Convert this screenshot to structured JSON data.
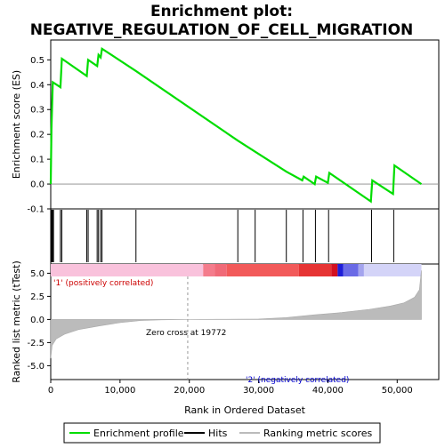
{
  "chart_data": {
    "type": "line",
    "title_line1": "Enrichment plot:",
    "title_line2": "NEGATIVE_REGULATION_OF_CELL_MIGRATION",
    "es_panel": {
      "ylabel": "Enrichment score (ES)",
      "ylim": [
        -0.1,
        0.58
      ],
      "yticks": [
        "-0.1",
        "0.0",
        "0.1",
        "0.2",
        "0.3",
        "0.4",
        "0.5"
      ],
      "series_name": "Enrichment profile",
      "color": "#00dd00",
      "points": [
        [
          0,
          0.0
        ],
        [
          100,
          0.22
        ],
        [
          300,
          0.41
        ],
        [
          1400,
          0.39
        ],
        [
          1600,
          0.505
        ],
        [
          5200,
          0.435
        ],
        [
          5400,
          0.5
        ],
        [
          6700,
          0.475
        ],
        [
          6900,
          0.52
        ],
        [
          7200,
          0.51
        ],
        [
          7400,
          0.545
        ],
        [
          12300,
          0.455
        ],
        [
          27000,
          0.175
        ],
        [
          29500,
          0.13
        ],
        [
          34000,
          0.05
        ],
        [
          36300,
          0.015
        ],
        [
          36500,
          0.03
        ],
        [
          38100,
          0.0
        ],
        [
          38300,
          0.03
        ],
        [
          40000,
          0.005
        ],
        [
          40200,
          0.045
        ],
        [
          46200,
          -0.07
        ],
        [
          46400,
          0.015
        ],
        [
          49400,
          -0.04
        ],
        [
          49600,
          0.075
        ],
        [
          53500,
          0.0
        ]
      ]
    },
    "hits": {
      "name": "Hits",
      "positions": [
        100,
        200,
        300,
        400,
        1400,
        1600,
        5200,
        5400,
        6700,
        6900,
        7200,
        7400,
        12300,
        27000,
        29500,
        34000,
        36400,
        38200,
        40100,
        46300,
        49500
      ]
    },
    "rank_panel": {
      "ylabel": "Ranked list metric (tTest)",
      "ylim": [
        -6.5,
        6.0
      ],
      "yticks": [
        "5.0",
        "2.5",
        "0.0",
        "-2.5",
        "-5.0"
      ],
      "series_name": "Ranking metric scores",
      "color": "#bbbbbb",
      "points": [
        [
          0,
          -4.2
        ],
        [
          200,
          -2.8
        ],
        [
          800,
          -2.1
        ],
        [
          2000,
          -1.6
        ],
        [
          4000,
          -1.1
        ],
        [
          7000,
          -0.7
        ],
        [
          10000,
          -0.35
        ],
        [
          13000,
          -0.12
        ],
        [
          16000,
          -0.04
        ],
        [
          19772,
          0.0
        ],
        [
          24000,
          0.02
        ],
        [
          30000,
          0.05
        ],
        [
          34000,
          0.2
        ],
        [
          38000,
          0.5
        ],
        [
          42000,
          0.75
        ],
        [
          46000,
          1.1
        ],
        [
          49000,
          1.45
        ],
        [
          51000,
          1.8
        ],
        [
          52500,
          2.4
        ],
        [
          53200,
          3.2
        ],
        [
          53500,
          5.3
        ]
      ],
      "zero_cross_label": "Zero cross at 19772",
      "zero_cross_x": 19772,
      "pos_label": "'1' (positively correlated)",
      "neg_label": "'2' (negatively correlated)",
      "pos_color": "#cc0000",
      "neg_color": "#0000cc"
    },
    "xlabel": "Rank in Ordered Dataset",
    "xlim": [
      0,
      56000
    ],
    "xticks": [
      "0",
      "10,000",
      "20,000",
      "30,000",
      "40,000",
      "50,000"
    ],
    "xtick_values": [
      0,
      10000,
      20000,
      30000,
      40000,
      50000
    ],
    "n_ranks": 53500,
    "color_bar": {
      "segments": [
        {
          "from": 0,
          "to": 22000,
          "color": "#f9c2dc"
        },
        {
          "from": 22000,
          "to": 23700,
          "color": "#f47c8c"
        },
        {
          "from": 23700,
          "to": 25400,
          "color": "#f06a78"
        },
        {
          "from": 25400,
          "to": 35800,
          "color": "#f25a5a"
        },
        {
          "from": 35800,
          "to": 40500,
          "color": "#e63434"
        },
        {
          "from": 40500,
          "to": 41400,
          "color": "#d31020"
        },
        {
          "from": 41400,
          "to": 42200,
          "color": "#1e1ed8"
        },
        {
          "from": 42200,
          "to": 44400,
          "color": "#6a6ae6"
        },
        {
          "from": 44400,
          "to": 45200,
          "color": "#a4a4ee"
        },
        {
          "from": 45200,
          "to": 53500,
          "color": "#d4d4f8"
        }
      ]
    },
    "legend": {
      "enrichment": "Enrichment profile",
      "hits": "Hits",
      "ranking": "Ranking metric scores"
    }
  }
}
